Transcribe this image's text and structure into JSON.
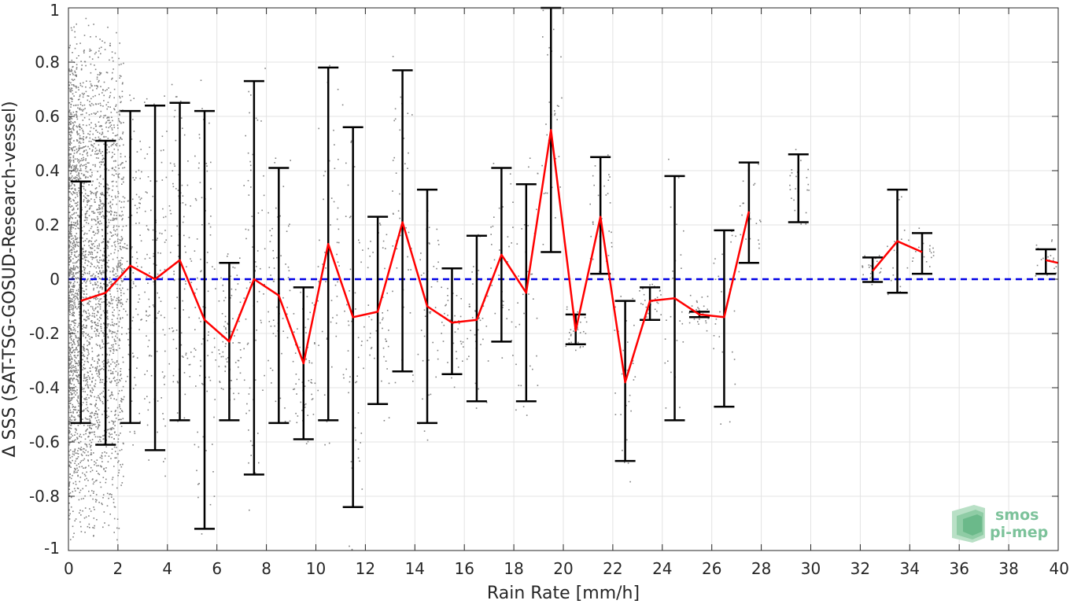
{
  "chart_data": {
    "type": "line",
    "title": "",
    "xlabel": "Rain Rate [mm/h]",
    "ylabel": "Δ SSS (SAT-TSG-GOSUD-Research-vessel)",
    "xlim": [
      0,
      40
    ],
    "ylim": [
      -1,
      1
    ],
    "xticks": [
      "0",
      "2",
      "4",
      "6",
      "8",
      "10",
      "12",
      "14",
      "16",
      "18",
      "20",
      "22",
      "24",
      "26",
      "28",
      "30",
      "32",
      "34",
      "36",
      "38",
      "40"
    ],
    "yticks": [
      "-1",
      "-0.8",
      "-0.6",
      "-0.4",
      "-0.2",
      "0",
      "0.2",
      "0.4",
      "0.6",
      "0.8",
      "1"
    ],
    "grid": true,
    "colors": {
      "mean_line": "#ff0000",
      "error_bars": "#000000",
      "zero_line": "#0000e6",
      "scatter": "#808080"
    },
    "zero_line_y": 0,
    "series": [
      {
        "x": [
          0.5,
          1.5,
          2.5,
          3.5,
          4.5,
          5.5,
          6.5,
          7.5,
          8.5,
          9.5,
          10.5,
          11.5,
          12.5,
          13.5,
          14.5,
          15.5,
          16.5,
          17.5,
          18.5,
          19.5,
          20.5,
          21.5,
          22.5,
          23.5,
          24.5,
          25.5,
          26.5,
          27.5,
          29.5,
          32.5,
          33.5,
          34.5,
          39.5,
          40
        ],
        "mean": [
          -0.08,
          -0.05,
          0.05,
          0.0,
          0.07,
          -0.15,
          -0.23,
          0.0,
          -0.06,
          -0.31,
          0.13,
          -0.14,
          -0.12,
          0.21,
          -0.1,
          -0.16,
          -0.15,
          0.09,
          -0.05,
          0.55,
          -0.19,
          0.23,
          -0.38,
          -0.08,
          -0.07,
          -0.13,
          -0.14,
          0.25,
          null,
          0.03,
          0.14,
          0.1,
          0.07,
          0.06
        ],
        "upper": [
          0.36,
          0.51,
          0.62,
          0.64,
          0.65,
          0.62,
          0.06,
          0.73,
          0.41,
          -0.03,
          0.78,
          0.56,
          0.23,
          0.77,
          0.33,
          0.04,
          0.16,
          0.41,
          0.35,
          1.0,
          -0.13,
          0.45,
          -0.08,
          -0.03,
          0.38,
          -0.12,
          0.18,
          0.43,
          0.46,
          0.08,
          0.33,
          0.17,
          0.11,
          null
        ],
        "lower": [
          -0.53,
          -0.61,
          -0.53,
          -0.63,
          -0.52,
          -0.92,
          -0.52,
          -0.72,
          -0.53,
          -0.59,
          -0.52,
          -0.84,
          -0.46,
          -0.34,
          -0.53,
          -0.35,
          -0.45,
          -0.23,
          -0.45,
          0.1,
          -0.24,
          0.02,
          -0.67,
          -0.15,
          -0.52,
          -0.14,
          -0.47,
          0.06,
          0.21,
          -0.01,
          -0.05,
          0.02,
          0.02,
          null
        ]
      }
    ]
  },
  "logo": {
    "line1": "smos",
    "line2": "pi-mep"
  }
}
